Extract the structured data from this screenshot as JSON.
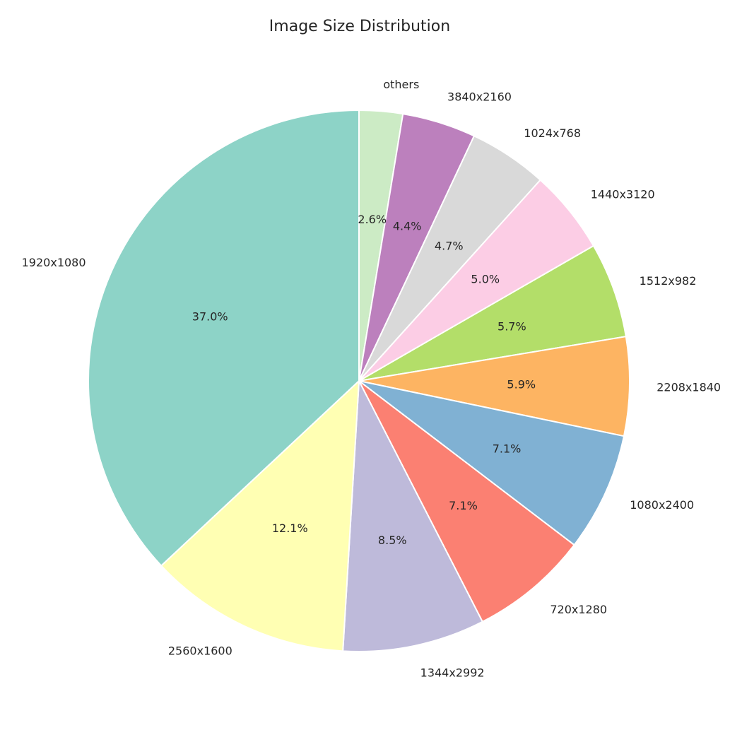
{
  "chart_data": {
    "type": "pie",
    "title": "Image Size Distribution",
    "start_angle_deg": 90,
    "direction": "clockwise",
    "slices": [
      {
        "label": "others",
        "value": 2.6,
        "pct_label": "2.6%",
        "color": "#ccebc5"
      },
      {
        "label": "3840x2160",
        "value": 4.4,
        "pct_label": "4.4%",
        "color": "#bc80bd"
      },
      {
        "label": "1024x768",
        "value": 4.7,
        "pct_label": "4.7%",
        "color": "#d9d9d9"
      },
      {
        "label": "1440x3120",
        "value": 5.0,
        "pct_label": "5.0%",
        "color": "#fccde5"
      },
      {
        "label": "1512x982",
        "value": 5.7,
        "pct_label": "5.7%",
        "color": "#b3de69"
      },
      {
        "label": "2208x1840",
        "value": 5.9,
        "pct_label": "5.9%",
        "color": "#fdb462"
      },
      {
        "label": "1080x2400",
        "value": 7.1,
        "pct_label": "7.1%",
        "color": "#80b1d3"
      },
      {
        "label": "720x1280",
        "value": 7.1,
        "pct_label": "7.1%",
        "color": "#fb8072"
      },
      {
        "label": "1344x2992",
        "value": 8.5,
        "pct_label": "8.5%",
        "color": "#bebada"
      },
      {
        "label": "2560x1600",
        "value": 12.1,
        "pct_label": "12.1%",
        "color": "#ffffb3"
      },
      {
        "label": "1920x1080",
        "value": 37.0,
        "pct_label": "37.0%",
        "color": "#8dd3c7"
      }
    ]
  }
}
